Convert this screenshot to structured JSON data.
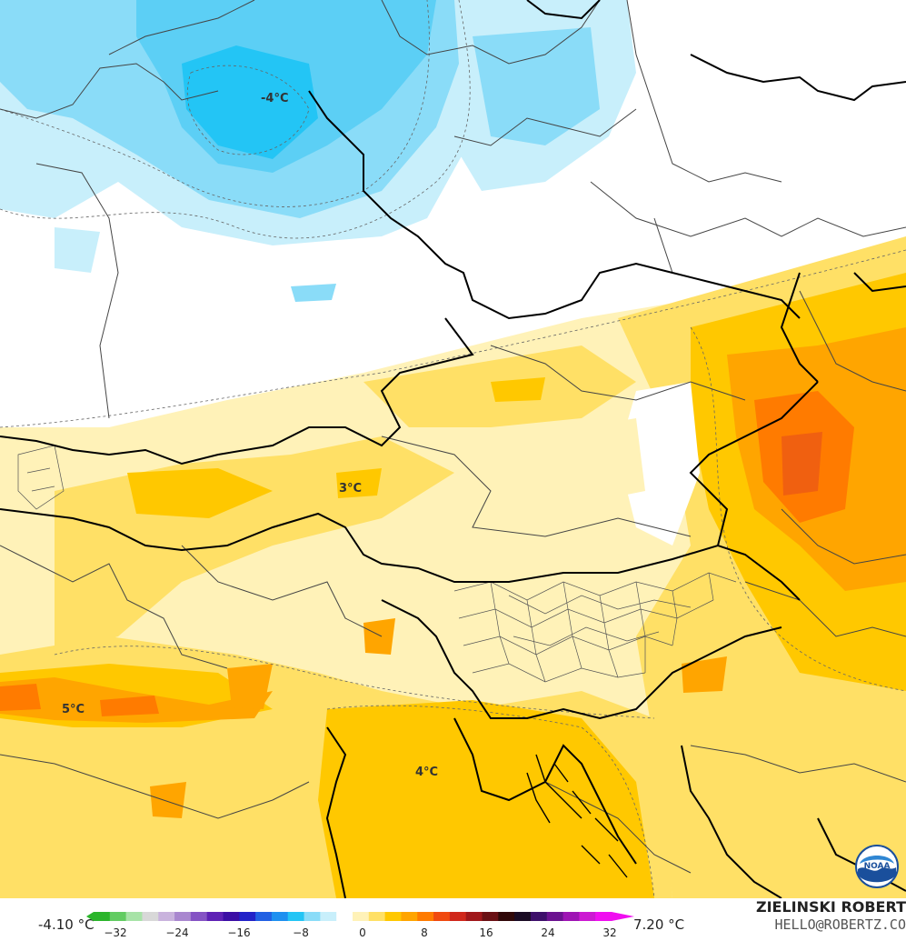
{
  "map": {
    "labels": [
      {
        "id": "cold-center",
        "text": "-4°C"
      },
      {
        "id": "central",
        "text": "3°C"
      },
      {
        "id": "west",
        "text": "5°C"
      },
      {
        "id": "adriatic",
        "text": "4°C"
      }
    ]
  },
  "legend": {
    "min_value": "-4.10 °C",
    "max_value": "7.20 °C",
    "ticks": [
      "−32",
      "−24",
      "−16",
      "−8",
      "0",
      "8",
      "16",
      "24",
      "32"
    ],
    "colors": [
      "#2bb52b",
      "#62cc62",
      "#a7e3a7",
      "#d8d8d8",
      "#c9b3dd",
      "#a987cf",
      "#8553c4",
      "#5e21b5",
      "#3b0ea5",
      "#2222c8",
      "#2160e3",
      "#1e90f0",
      "#23c5f5",
      "#8adcf8",
      "#c8effb",
      "#ffffff",
      "#fff2b8",
      "#ffe066",
      "#ffc800",
      "#ffa500",
      "#ff7b00",
      "#f04a10",
      "#d0271b",
      "#a0171a",
      "#6a1014",
      "#300809",
      "#1a0b24",
      "#3d0f6a",
      "#6b1290",
      "#9e14b4",
      "#cc19d2",
      "#f00ef0"
    ]
  },
  "branding": {
    "author": "ZIELINSKI ROBERT",
    "email": "HELLO@ROBERTZ.CO",
    "logo": "NOAA"
  }
}
